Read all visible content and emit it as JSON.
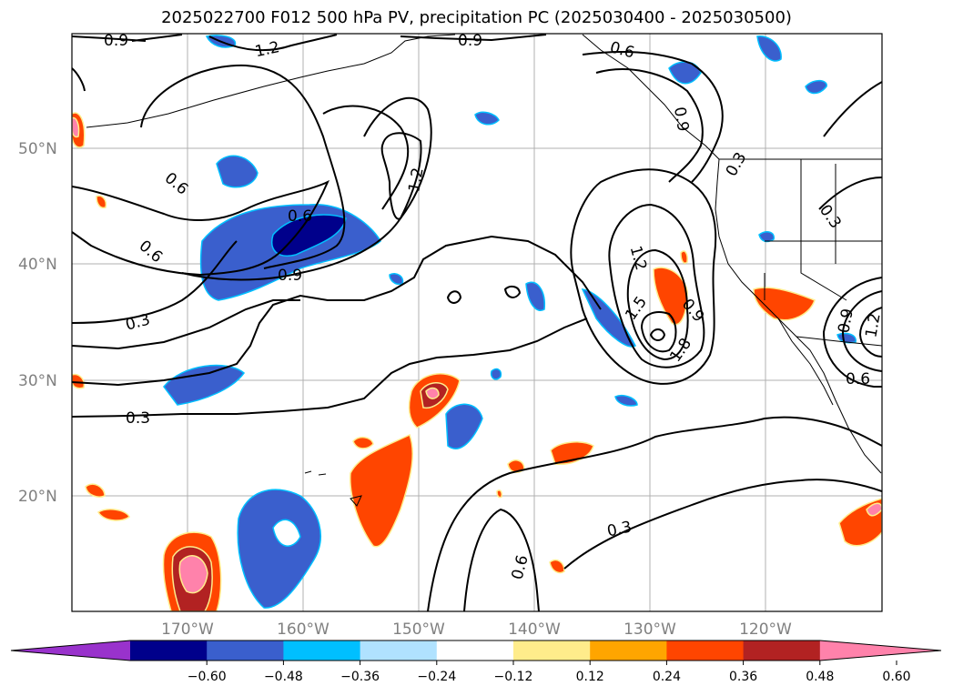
{
  "title": "2025022700 F012 500 hPa PV, precipitation PC (2025030400 - 2025030500)",
  "lat_labels": [
    "50°N",
    "40°N",
    "30°N",
    "20°N"
  ],
  "lon_labels": [
    "170°W",
    "160°W",
    "150°W",
    "140°W",
    "130°W",
    "120°W"
  ],
  "contour_labels": [
    "0.9",
    "1.2",
    "0.9",
    "0.6",
    "0.9",
    "0.6",
    "1.2",
    "0.6",
    "0.9",
    "0.6",
    "0.3",
    "0.3",
    "1.2",
    "1.5",
    "1.8",
    "0.9",
    "0.3",
    "0.6",
    "0.3",
    "0.6",
    "0.3",
    "0.9",
    "1.2"
  ],
  "colorbar": {
    "ticks": [
      "−0.60",
      "−0.48",
      "−0.36",
      "−0.24",
      "−0.12",
      "0.12",
      "0.24",
      "0.36",
      "0.48",
      "0.60"
    ],
    "colors": [
      "#9932cc",
      "#00008b",
      "#3a5fcd",
      "#00bfff",
      "#b0e2ff",
      "#ffffff",
      "#ffec8b",
      "#ffa500",
      "#ff4500",
      "#b22222",
      "#ff82ab"
    ]
  }
}
